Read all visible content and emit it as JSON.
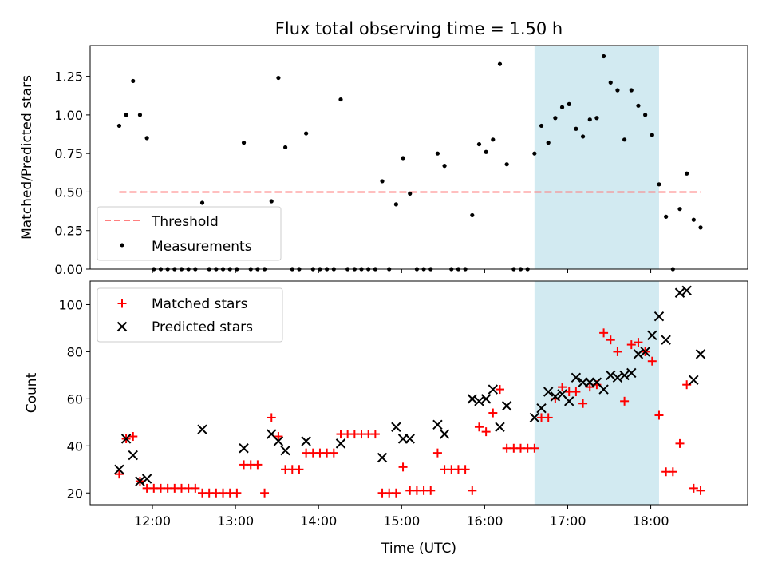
{
  "chart_data": [
    {
      "type": "scatter",
      "title": "Flux total observing time = 1.50 h",
      "xlabel": "",
      "ylabel": "Matched/Predicted stars",
      "x_unit": "time (UTC)",
      "xlim": [
        "11:15",
        "19:10"
      ],
      "ylim": [
        0,
        1.45
      ],
      "yticks": [
        "0.00",
        "0.25",
        "0.50",
        "0.75",
        "1.00",
        "1.25"
      ],
      "ytick_values": [
        0,
        0.25,
        0.5,
        0.75,
        1.0,
        1.25
      ],
      "xticks": [
        "12:00",
        "13:00",
        "14:00",
        "15:00",
        "16:00",
        "17:00",
        "18:00"
      ],
      "highlight_span": [
        "16:36",
        "18:06"
      ],
      "legend": {
        "placement": "lower-left",
        "entries": [
          "Threshold",
          "Measurements"
        ]
      },
      "threshold": {
        "name": "Threshold",
        "value": 0.5,
        "x_start": "11:36",
        "x_end": "18:36",
        "color": "#ff7f7f"
      },
      "series": [
        {
          "name": "Measurements",
          "color": "#000000",
          "points": [
            [
              "11:36",
              0.93
            ],
            [
              "11:41",
              1.0
            ],
            [
              "11:46",
              1.22
            ],
            [
              "11:51",
              1.0
            ],
            [
              "11:56",
              0.85
            ],
            [
              "12:01",
              0.0
            ],
            [
              "12:06",
              0.0
            ],
            [
              "12:11",
              0.0
            ],
            [
              "12:16",
              0.0
            ],
            [
              "12:21",
              0.0
            ],
            [
              "12:26",
              0.0
            ],
            [
              "12:31",
              0.0
            ],
            [
              "12:36",
              0.43
            ],
            [
              "12:41",
              0.0
            ],
            [
              "12:46",
              0.0
            ],
            [
              "12:51",
              0.0
            ],
            [
              "12:56",
              0.0
            ],
            [
              "13:01",
              0.0
            ],
            [
              "13:06",
              0.82
            ],
            [
              "13:11",
              0.0
            ],
            [
              "13:16",
              0.0
            ],
            [
              "13:21",
              0.0
            ],
            [
              "13:26",
              0.44
            ],
            [
              "13:31",
              1.24
            ],
            [
              "13:36",
              0.79
            ],
            [
              "13:41",
              0.0
            ],
            [
              "13:46",
              0.0
            ],
            [
              "13:51",
              0.88
            ],
            [
              "13:56",
              0.0
            ],
            [
              "14:01",
              0.0
            ],
            [
              "14:06",
              0.0
            ],
            [
              "14:11",
              0.0
            ],
            [
              "14:16",
              1.1
            ],
            [
              "14:21",
              0.0
            ],
            [
              "14:26",
              0.0
            ],
            [
              "14:31",
              0.0
            ],
            [
              "14:36",
              0.0
            ],
            [
              "14:41",
              0.0
            ],
            [
              "14:46",
              0.57
            ],
            [
              "14:51",
              0.0
            ],
            [
              "14:56",
              0.42
            ],
            [
              "15:01",
              0.72
            ],
            [
              "15:06",
              0.49
            ],
            [
              "15:11",
              0.0
            ],
            [
              "15:16",
              0.0
            ],
            [
              "15:21",
              0.0
            ],
            [
              "15:26",
              0.75
            ],
            [
              "15:31",
              0.67
            ],
            [
              "15:36",
              0.0
            ],
            [
              "15:41",
              0.0
            ],
            [
              "15:46",
              0.0
            ],
            [
              "15:51",
              0.35
            ],
            [
              "15:56",
              0.81
            ],
            [
              "16:01",
              0.76
            ],
            [
              "16:06",
              0.84
            ],
            [
              "16:11",
              1.33
            ],
            [
              "16:16",
              0.68
            ],
            [
              "16:21",
              0.0
            ],
            [
              "16:26",
              0.0
            ],
            [
              "16:31",
              0.0
            ],
            [
              "16:36",
              0.75
            ],
            [
              "16:41",
              0.93
            ],
            [
              "16:46",
              0.82
            ],
            [
              "16:51",
              0.98
            ],
            [
              "16:56",
              1.05
            ],
            [
              "17:01",
              1.07
            ],
            [
              "17:06",
              0.91
            ],
            [
              "17:11",
              0.86
            ],
            [
              "17:16",
              0.97
            ],
            [
              "17:21",
              0.98
            ],
            [
              "17:26",
              1.38
            ],
            [
              "17:31",
              1.21
            ],
            [
              "17:36",
              1.16
            ],
            [
              "17:41",
              0.84
            ],
            [
              "17:46",
              1.16
            ],
            [
              "17:51",
              1.06
            ],
            [
              "17:56",
              1.0
            ],
            [
              "18:01",
              0.87
            ],
            [
              "18:06",
              0.55
            ],
            [
              "18:11",
              0.34
            ],
            [
              "18:16",
              0.0
            ],
            [
              "18:21",
              0.39
            ],
            [
              "18:26",
              0.62
            ],
            [
              "18:31",
              0.32
            ],
            [
              "18:36",
              0.27
            ]
          ]
        }
      ]
    },
    {
      "type": "scatter",
      "title": "",
      "xlabel": "Time (UTC)",
      "ylabel": "Count",
      "x_unit": "time (UTC)",
      "xlim": [
        "11:15",
        "19:10"
      ],
      "ylim": [
        15,
        110
      ],
      "yticks": [
        "20",
        "40",
        "60",
        "80",
        "100"
      ],
      "ytick_values": [
        20,
        40,
        60,
        80,
        100
      ],
      "xticks": [
        "12:00",
        "13:00",
        "14:00",
        "15:00",
        "16:00",
        "17:00",
        "18:00"
      ],
      "highlight_span": [
        "16:36",
        "18:06"
      ],
      "legend": {
        "placement": "upper-left",
        "entries": [
          "Matched stars",
          "Predicted stars"
        ]
      },
      "series": [
        {
          "name": "Matched stars",
          "marker": "plus",
          "color": "#ff0000",
          "points": [
            [
              "11:36",
              28
            ],
            [
              "11:41",
              43
            ],
            [
              "11:46",
              44
            ],
            [
              "11:51",
              25
            ],
            [
              "11:56",
              22
            ],
            [
              "12:01",
              22
            ],
            [
              "12:06",
              22
            ],
            [
              "12:11",
              22
            ],
            [
              "12:16",
              22
            ],
            [
              "12:21",
              22
            ],
            [
              "12:26",
              22
            ],
            [
              "12:31",
              22
            ],
            [
              "12:36",
              20
            ],
            [
              "12:41",
              20
            ],
            [
              "12:46",
              20
            ],
            [
              "12:51",
              20
            ],
            [
              "12:56",
              20
            ],
            [
              "13:01",
              20
            ],
            [
              "13:06",
              32
            ],
            [
              "13:11",
              32
            ],
            [
              "13:16",
              32
            ],
            [
              "13:21",
              20
            ],
            [
              "13:26",
              52
            ],
            [
              "13:31",
              44
            ],
            [
              "13:36",
              30
            ],
            [
              "13:41",
              30
            ],
            [
              "13:46",
              30
            ],
            [
              "13:51",
              37
            ],
            [
              "13:56",
              37
            ],
            [
              "14:01",
              37
            ],
            [
              "14:06",
              37
            ],
            [
              "14:11",
              37
            ],
            [
              "14:16",
              45
            ],
            [
              "14:21",
              45
            ],
            [
              "14:26",
              45
            ],
            [
              "14:31",
              45
            ],
            [
              "14:36",
              45
            ],
            [
              "14:41",
              45
            ],
            [
              "14:46",
              20
            ],
            [
              "14:51",
              20
            ],
            [
              "14:56",
              20
            ],
            [
              "15:01",
              31
            ],
            [
              "15:06",
              21
            ],
            [
              "15:11",
              21
            ],
            [
              "15:16",
              21
            ],
            [
              "15:21",
              21
            ],
            [
              "15:26",
              37
            ],
            [
              "15:31",
              30
            ],
            [
              "15:36",
              30
            ],
            [
              "15:41",
              30
            ],
            [
              "15:46",
              30
            ],
            [
              "15:51",
              21
            ],
            [
              "15:56",
              48
            ],
            [
              "16:01",
              46
            ],
            [
              "16:06",
              54
            ],
            [
              "16:11",
              64
            ],
            [
              "16:16",
              39
            ],
            [
              "16:21",
              39
            ],
            [
              "16:26",
              39
            ],
            [
              "16:31",
              39
            ],
            [
              "16:36",
              39
            ],
            [
              "16:41",
              52
            ],
            [
              "16:46",
              52
            ],
            [
              "16:51",
              60
            ],
            [
              "16:56",
              65
            ],
            [
              "17:01",
              63
            ],
            [
              "17:06",
              63
            ],
            [
              "17:11",
              58
            ],
            [
              "17:16",
              65
            ],
            [
              "17:21",
              66
            ],
            [
              "17:26",
              88
            ],
            [
              "17:31",
              85
            ],
            [
              "17:36",
              80
            ],
            [
              "17:41",
              59
            ],
            [
              "17:46",
              83
            ],
            [
              "17:51",
              84
            ],
            [
              "17:56",
              80
            ],
            [
              "18:01",
              76
            ],
            [
              "18:06",
              53
            ],
            [
              "18:11",
              29
            ],
            [
              "18:16",
              29
            ],
            [
              "18:21",
              41
            ],
            [
              "18:26",
              66
            ],
            [
              "18:31",
              22
            ],
            [
              "18:36",
              21
            ]
          ]
        },
        {
          "name": "Predicted stars",
          "marker": "x",
          "color": "#000000",
          "points": [
            [
              "11:36",
              30
            ],
            [
              "11:41",
              43
            ],
            [
              "11:46",
              36
            ],
            [
              "11:51",
              25
            ],
            [
              "11:56",
              26
            ],
            [
              "12:36",
              47
            ],
            [
              "13:06",
              39
            ],
            [
              "13:26",
              45
            ],
            [
              "13:31",
              42
            ],
            [
              "13:36",
              38
            ],
            [
              "13:51",
              42
            ],
            [
              "14:16",
              41
            ],
            [
              "14:46",
              35
            ],
            [
              "14:56",
              48
            ],
            [
              "15:01",
              43
            ],
            [
              "15:06",
              43
            ],
            [
              "15:26",
              49
            ],
            [
              "15:31",
              45
            ],
            [
              "15:51",
              60
            ],
            [
              "15:56",
              59
            ],
            [
              "16:01",
              60
            ],
            [
              "16:06",
              64
            ],
            [
              "16:11",
              48
            ],
            [
              "16:16",
              57
            ],
            [
              "16:36",
              52
            ],
            [
              "16:41",
              56
            ],
            [
              "16:46",
              63
            ],
            [
              "16:51",
              61
            ],
            [
              "16:56",
              62
            ],
            [
              "17:01",
              59
            ],
            [
              "17:06",
              69
            ],
            [
              "17:11",
              67
            ],
            [
              "17:16",
              67
            ],
            [
              "17:21",
              67
            ],
            [
              "17:26",
              64
            ],
            [
              "17:31",
              70
            ],
            [
              "17:36",
              69
            ],
            [
              "17:41",
              70
            ],
            [
              "17:46",
              71
            ],
            [
              "17:51",
              79
            ],
            [
              "17:56",
              80
            ],
            [
              "18:01",
              87
            ],
            [
              "18:06",
              95
            ],
            [
              "18:11",
              85
            ],
            [
              "18:21",
              105
            ],
            [
              "18:26",
              106
            ],
            [
              "18:31",
              68
            ],
            [
              "18:36",
              79
            ]
          ]
        }
      ]
    }
  ]
}
